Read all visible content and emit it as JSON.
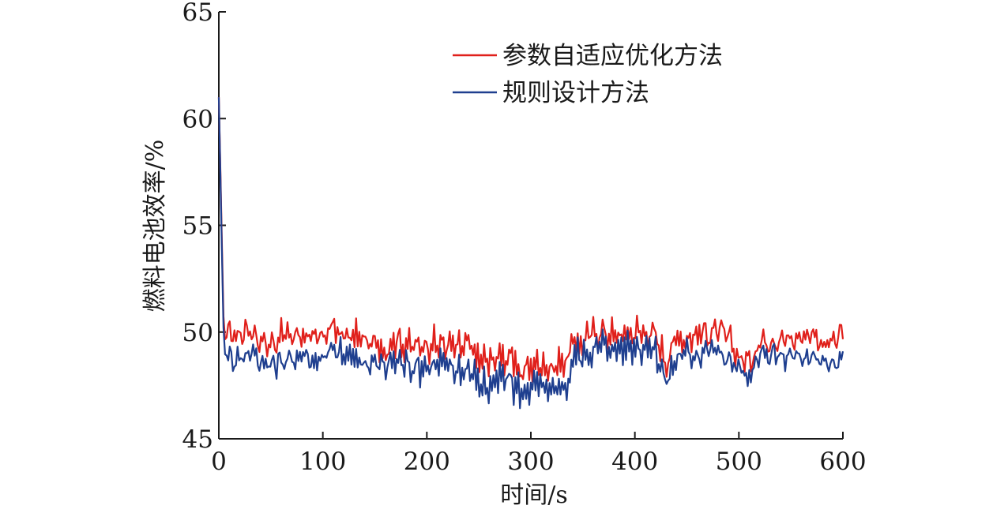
{
  "chart_data": {
    "type": "line",
    "xlabel": "时间/s",
    "ylabel": "燃料电池效率/%",
    "xlim": [
      0,
      600
    ],
    "ylim": [
      45,
      65
    ],
    "x_ticks": [
      0,
      100,
      200,
      300,
      400,
      500,
      600
    ],
    "y_ticks": [
      45,
      50,
      55,
      60,
      65
    ],
    "x_tick_labels": [
      "0",
      "100",
      "200",
      "300",
      "400",
      "500",
      "600"
    ],
    "y_tick_labels": [
      "45",
      "50",
      "55",
      "60",
      "65"
    ],
    "grid": false,
    "legend_position": "top-right",
    "x": [
      0,
      5,
      10,
      20,
      30,
      40,
      50,
      60,
      70,
      80,
      90,
      100,
      110,
      120,
      130,
      140,
      150,
      160,
      170,
      180,
      190,
      200,
      210,
      220,
      230,
      240,
      250,
      260,
      270,
      280,
      290,
      300,
      310,
      320,
      330,
      336,
      340,
      350,
      360,
      370,
      380,
      390,
      400,
      410,
      420,
      430,
      440,
      450,
      460,
      470,
      480,
      490,
      500,
      510,
      520,
      530,
      540,
      550,
      560,
      570,
      580,
      590,
      600
    ],
    "series": [
      {
        "name": "参数自适应优化方法",
        "color": "#e0201b",
        "values": [
          61.0,
          49.6,
          49.9,
          49.9,
          50.2,
          49.6,
          49.4,
          49.9,
          49.8,
          50.0,
          49.5,
          49.9,
          50.2,
          49.8,
          49.8,
          49.6,
          49.4,
          49.2,
          49.7,
          49.4,
          49.3,
          49.5,
          49.4,
          49.4,
          49.2,
          49.4,
          48.7,
          48.6,
          48.9,
          48.8,
          48.1,
          48.4,
          48.6,
          48.2,
          48.7,
          48.7,
          49.6,
          49.5,
          50.0,
          50.0,
          49.8,
          49.9,
          50.0,
          50.0,
          49.8,
          48.6,
          49.8,
          49.7,
          49.9,
          50.0,
          50.0,
          49.7,
          48.8,
          48.6,
          49.6,
          49.7,
          49.7,
          49.6,
          49.8,
          50.0,
          49.5,
          49.5,
          49.9
        ]
      },
      {
        "name": "规则设计方法",
        "color": "#1f3f8f",
        "values": [
          61.0,
          49.0,
          48.8,
          48.8,
          49.1,
          48.7,
          48.4,
          48.7,
          48.6,
          49.1,
          48.6,
          48.9,
          49.1,
          48.9,
          48.8,
          48.6,
          48.5,
          48.4,
          48.7,
          48.5,
          48.4,
          48.4,
          48.5,
          48.4,
          48.2,
          48.3,
          47.6,
          47.4,
          47.8,
          47.8,
          47.1,
          47.4,
          47.5,
          47.0,
          47.6,
          47.4,
          48.9,
          48.9,
          49.2,
          49.4,
          49.2,
          49.3,
          49.4,
          49.3,
          49.2,
          47.6,
          48.8,
          49.0,
          49.0,
          49.2,
          49.1,
          48.7,
          48.2,
          47.7,
          48.9,
          49.0,
          48.8,
          48.7,
          48.8,
          48.9,
          48.6,
          48.3,
          48.9
        ]
      }
    ]
  }
}
